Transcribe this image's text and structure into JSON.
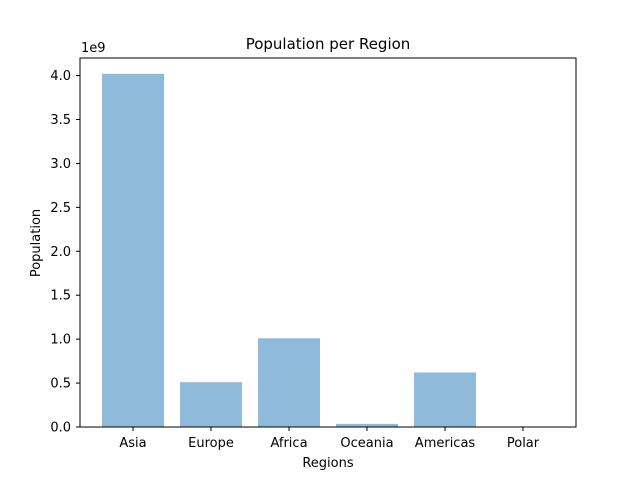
{
  "chart_data": {
    "type": "bar",
    "title": "Population per Region",
    "xlabel": "Regions",
    "ylabel": "Population",
    "y_offset_label": "1e9",
    "categories": [
      "Asia",
      "Europe",
      "Africa",
      "Oceania",
      "Americas",
      "Polar"
    ],
    "values": [
      4.02,
      0.51,
      1.01,
      0.035,
      0.62,
      0.0
    ],
    "value_scale": 1000000000,
    "ylim": [
      0,
      4.2
    ],
    "yticks": [
      0.0,
      0.5,
      1.0,
      1.5,
      2.0,
      2.5,
      3.0,
      3.5,
      4.0
    ],
    "ytick_labels": [
      "0.0",
      "0.5",
      "1.0",
      "1.5",
      "2.0",
      "2.5",
      "3.0",
      "3.5",
      "4.0"
    ],
    "grid": false,
    "bar_color": "#8fbad9"
  }
}
